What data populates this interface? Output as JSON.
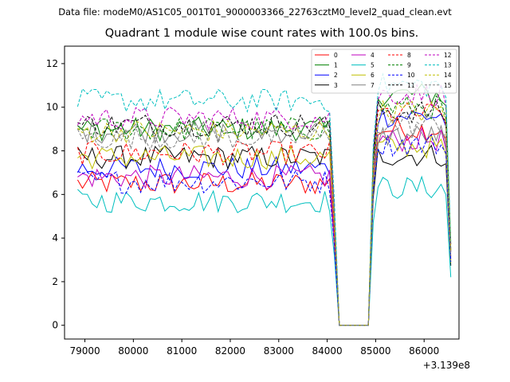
{
  "suptitle": "Data file: modeM0/AS1C05_001T01_9000003366_22763cztM0_level2_quad_clean.evt",
  "chart_data": {
    "type": "line",
    "title": "Quadrant 1 module wise count rates with 100.0s bins.",
    "xlabel": "",
    "ylabel": "",
    "x_offset_label": "+3.139e8",
    "x_tick_labels": [
      "79000",
      "80000",
      "81000",
      "82000",
      "83000",
      "84000",
      "85000",
      "86000"
    ],
    "x_ticks": [
      79000,
      80000,
      81000,
      82000,
      83000,
      84000,
      85000,
      86000
    ],
    "y_tick_labels": [
      "0",
      "2",
      "4",
      "6",
      "8",
      "10",
      "12"
    ],
    "y_ticks": [
      0,
      2,
      4,
      6,
      8,
      10,
      12
    ],
    "xlim": [
      78580,
      86720
    ],
    "ylim": [
      -0.63,
      12.8
    ],
    "grid": false,
    "legend_position": "top-right",
    "legend_columns": 4,
    "x_start": 78850,
    "bin": 100,
    "gap_start": 84150,
    "gap_end": 84950,
    "series": [
      {
        "name": "0",
        "color": "#ff0000",
        "dash": "solid",
        "pre": 6.5,
        "post": 9.0
      },
      {
        "name": "1",
        "color": "#008000",
        "dash": "solid",
        "pre": 9.0,
        "post": 10.6
      },
      {
        "name": "2",
        "color": "#0000ff",
        "dash": "solid",
        "pre": 7.2,
        "post": 9.6
      },
      {
        "name": "3",
        "color": "#000000",
        "dash": "solid",
        "pre": 7.7,
        "post": 7.8
      },
      {
        "name": "4",
        "color": "#bf00bf",
        "dash": "solid",
        "pre": 6.8,
        "post": 8.5
      },
      {
        "name": "5",
        "color": "#00bfbf",
        "dash": "solid",
        "pre": 5.7,
        "post": 6.3
      },
      {
        "name": "6",
        "color": "#bfbf00",
        "dash": "solid",
        "pre": 7.7,
        "post": 8.2
      },
      {
        "name": "7",
        "color": "#808080",
        "dash": "solid",
        "pre": 8.9,
        "post": 8.7
      },
      {
        "name": "8",
        "color": "#ff0000",
        "dash": "dashed",
        "pre": 7.9,
        "post": 9.7
      },
      {
        "name": "9",
        "color": "#008000",
        "dash": "dashed",
        "pre": 9.0,
        "post": 10.0
      },
      {
        "name": "10",
        "color": "#0000ff",
        "dash": "dashed",
        "pre": 6.6,
        "post": 8.3
      },
      {
        "name": "11",
        "color": "#000000",
        "dash": "dashed",
        "pre": 9.2,
        "post": 9.8
      },
      {
        "name": "12",
        "color": "#bf00bf",
        "dash": "dashed",
        "pre": 9.5,
        "post": 10.6
      },
      {
        "name": "13",
        "color": "#00bfbf",
        "dash": "dashed",
        "pre": 10.3,
        "post": 11.0
      },
      {
        "name": "14",
        "color": "#bfbf00",
        "dash": "dashed",
        "pre": 8.9,
        "post": 9.8
      },
      {
        "name": "15",
        "color": "#808080",
        "dash": "dashed",
        "pre": 8.6,
        "post": 9.2
      }
    ]
  }
}
